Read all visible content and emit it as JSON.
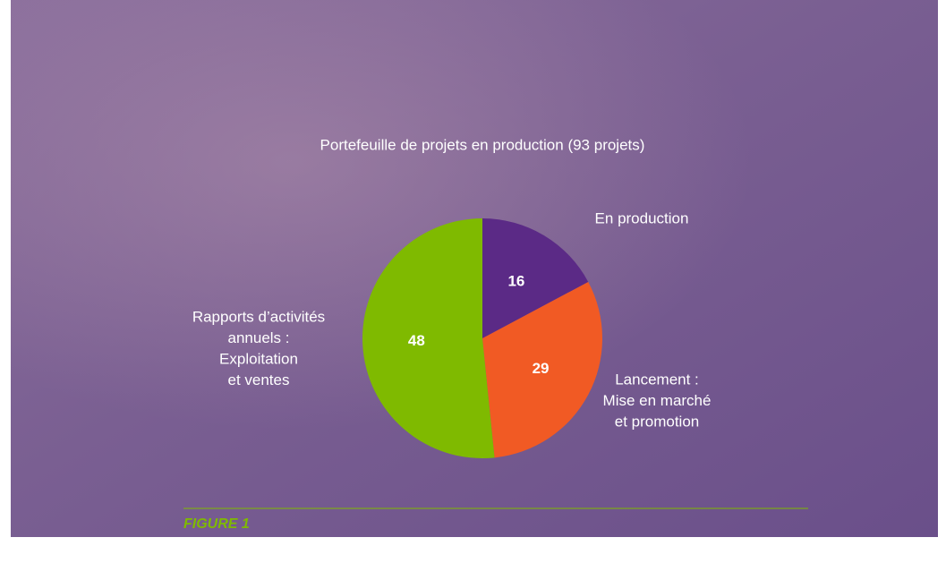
{
  "chart_data": {
    "type": "pie",
    "title": "Portefeuille de projets en production (93 projets)",
    "categories": [
      [
        "En production"
      ],
      [
        "Lancement :",
        "Mise en marché",
        "et promotion"
      ],
      [
        "Rapports d’activités",
        "annuels :",
        "Exploitation",
        "et ventes"
      ]
    ],
    "values": [
      16,
      29,
      48
    ],
    "colors": [
      "#5b2a86",
      "#f15a24",
      "#7fba00"
    ],
    "caption": "FIGURE 1"
  }
}
